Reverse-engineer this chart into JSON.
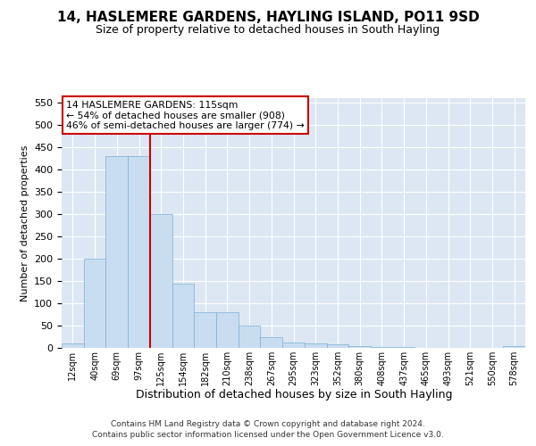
{
  "title": "14, HASLEMERE GARDENS, HAYLING ISLAND, PO11 9SD",
  "subtitle": "Size of property relative to detached houses in South Hayling",
  "xlabel": "Distribution of detached houses by size in South Hayling",
  "ylabel": "Number of detached properties",
  "bar_color": "#c9ddf0",
  "bar_edge_color": "#7aafd4",
  "background_color": "#dce7f3",
  "grid_color": "#ffffff",
  "vline_color": "#cc0000",
  "vline_x": 3.5,
  "annotation_line1": "14 HASLEMERE GARDENS: 115sqm",
  "annotation_line2": "← 54% of detached houses are smaller (908)",
  "annotation_line3": "46% of semi-detached houses are larger (774) →",
  "categories": [
    "12sqm",
    "40sqm",
    "69sqm",
    "97sqm",
    "125sqm",
    "154sqm",
    "182sqm",
    "210sqm",
    "238sqm",
    "267sqm",
    "295sqm",
    "323sqm",
    "352sqm",
    "380sqm",
    "408sqm",
    "437sqm",
    "465sqm",
    "493sqm",
    "521sqm",
    "550sqm",
    "578sqm"
  ],
  "values": [
    10,
    200,
    430,
    430,
    300,
    145,
    80,
    80,
    50,
    25,
    12,
    10,
    8,
    5,
    3,
    2,
    1,
    1,
    1,
    0,
    5
  ],
  "ylim": [
    0,
    560
  ],
  "yticks": [
    0,
    50,
    100,
    150,
    200,
    250,
    300,
    350,
    400,
    450,
    500,
    550
  ],
  "title_fontsize": 11,
  "subtitle_fontsize": 9,
  "ylabel_fontsize": 8,
  "xlabel_fontsize": 9,
  "tick_fontsize": 8,
  "footer_line1": "Contains HM Land Registry data © Crown copyright and database right 2024.",
  "footer_line2": "Contains public sector information licensed under the Open Government Licence v3.0."
}
